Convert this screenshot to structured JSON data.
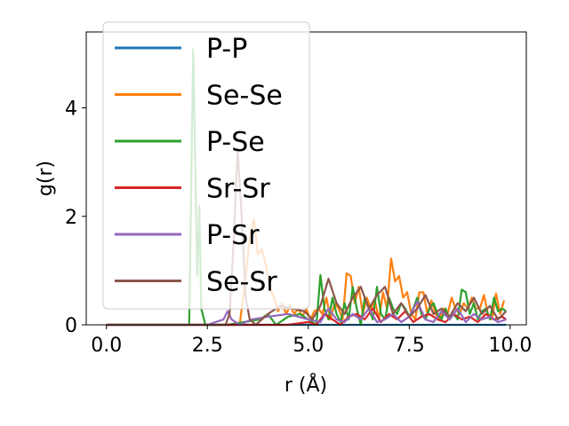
{
  "chart_data": {
    "type": "line",
    "title": "",
    "xlabel": "r (Å)",
    "ylabel": "g(r)",
    "xlim": [
      -0.5,
      10.4
    ],
    "ylim": [
      0,
      5.4
    ],
    "xticks": [
      0.0,
      2.5,
      5.0,
      7.5,
      10.0
    ],
    "xtick_labels": [
      "0.0",
      "2.5",
      "5.0",
      "7.5",
      "10.0"
    ],
    "yticks": [
      0,
      2,
      4
    ],
    "ytick_labels": [
      "0",
      "2",
      "4"
    ],
    "grid": false,
    "legend_position": "upper-left",
    "series": [
      {
        "name": "P-P",
        "color": "#1f77b4",
        "x": [
          0,
          1.0,
          2.0,
          3.0,
          4.0,
          5.0,
          6.0,
          7.0,
          8.0,
          9.0,
          9.9
        ],
        "y": [
          0,
          0,
          0,
          0,
          0,
          0,
          0,
          0,
          0,
          0,
          0
        ]
      },
      {
        "name": "Se-Se",
        "color": "#ff7f0e",
        "x": [
          0,
          3.3,
          3.45,
          3.55,
          3.65,
          3.75,
          3.85,
          3.95,
          4.05,
          4.15,
          4.25,
          4.35,
          4.45,
          4.55,
          4.65,
          4.75,
          4.85,
          4.95,
          5.05,
          5.15,
          5.25,
          5.35,
          5.45,
          5.55,
          5.65,
          5.75,
          5.85,
          5.95,
          6.05,
          6.15,
          6.25,
          6.35,
          6.45,
          6.55,
          6.65,
          6.75,
          6.85,
          6.95,
          7.05,
          7.15,
          7.25,
          7.35,
          7.45,
          7.55,
          7.65,
          7.75,
          7.85,
          7.95,
          8.05,
          8.15,
          8.25,
          8.35,
          8.45,
          8.55,
          8.65,
          8.75,
          8.85,
          8.95,
          9.05,
          9.15,
          9.25,
          9.35,
          9.45,
          9.55,
          9.65,
          9.75,
          9.85
        ],
        "y": [
          0,
          0,
          0.9,
          1.6,
          1.95,
          1.3,
          1.4,
          1.1,
          0.7,
          0.5,
          0.25,
          0.4,
          0.2,
          0.35,
          0.2,
          0.3,
          0.15,
          0.3,
          0.1,
          0.25,
          0.3,
          0.2,
          0.5,
          0.1,
          0.4,
          0.3,
          0.1,
          0.95,
          0.9,
          0.4,
          0.7,
          0.2,
          0.5,
          0.3,
          0.45,
          0.1,
          0.6,
          0.3,
          1.22,
          0.8,
          0.9,
          0.5,
          0.6,
          0.2,
          0.1,
          0.6,
          0.6,
          0.2,
          0.45,
          0.2,
          0.1,
          0.3,
          0.2,
          0.5,
          0.3,
          0.2,
          0.4,
          0.3,
          0.5,
          0.3,
          0.3,
          0.55,
          0.2,
          0.1,
          0.58,
          0.2,
          0.45
        ]
      },
      {
        "name": "P-Se",
        "color": "#2ca02c",
        "x": [
          0,
          2.05,
          2.15,
          2.25,
          2.3,
          2.35,
          2.45,
          3.0,
          3.8,
          4.0,
          4.2,
          4.5,
          4.8,
          5.0,
          5.2,
          5.3,
          5.4,
          5.5,
          5.6,
          5.7,
          5.8,
          5.9,
          6.0,
          6.1,
          6.2,
          6.3,
          6.4,
          6.5,
          6.6,
          6.7,
          6.8,
          6.9,
          7.0,
          7.1,
          7.2,
          7.3,
          7.4,
          7.5,
          7.6,
          7.7,
          7.8,
          7.9,
          8.0,
          8.1,
          8.2,
          8.3,
          8.4,
          8.5,
          8.6,
          8.7,
          8.8,
          8.9,
          9.0,
          9.1,
          9.2,
          9.3,
          9.4,
          9.5,
          9.6,
          9.7,
          9.8,
          9.9
        ],
        "y": [
          0,
          0,
          5.08,
          0.9,
          2.2,
          0.3,
          0,
          0,
          0.1,
          0.2,
          0,
          0.15,
          0.2,
          0.1,
          0,
          0.92,
          0.3,
          0.1,
          0.5,
          0.2,
          0.05,
          0.4,
          0.1,
          0.7,
          0.3,
          0,
          0.5,
          0.3,
          0.1,
          0.7,
          0.2,
          0.1,
          0.5,
          0.3,
          0.2,
          0.4,
          0.3,
          0.15,
          0.3,
          0.5,
          0.2,
          0.1,
          0.3,
          0.4,
          0.2,
          0.1,
          0.3,
          0.1,
          0.2,
          0.1,
          0.65,
          0.6,
          0.2,
          0.4,
          0.1,
          0.25,
          0.3,
          0.1,
          0.5,
          0.25,
          0.3,
          0.25
        ]
      },
      {
        "name": "Sr-Sr",
        "color": "#d62728",
        "x": [
          0,
          3.0,
          4.0,
          4.5,
          5.0,
          5.2,
          5.4,
          5.6,
          5.8,
          6.0,
          6.2,
          6.4,
          6.6,
          6.8,
          7.0,
          7.2,
          7.4,
          7.6,
          7.8,
          8.0,
          8.2,
          8.4,
          8.6,
          8.8,
          9.0,
          9.2,
          9.4,
          9.6,
          9.8,
          9.9
        ],
        "y": [
          0,
          0,
          0,
          0,
          0.05,
          0,
          0.2,
          0.1,
          0,
          0.15,
          0.2,
          0.1,
          0.3,
          0.05,
          0.2,
          0.1,
          0.25,
          0.05,
          0.15,
          0.2,
          0.1,
          0.05,
          0.2,
          0.1,
          0.15,
          0.05,
          0.2,
          0.1,
          0.15,
          0.1
        ]
      },
      {
        "name": "P-Sr",
        "color": "#9467bd",
        "x": [
          0,
          2.5,
          2.9,
          3.0,
          3.1,
          3.3,
          3.6,
          4.0,
          4.5,
          5.0,
          5.3,
          5.5,
          5.7,
          5.9,
          6.1,
          6.3,
          6.5,
          6.7,
          6.9,
          7.1,
          7.3,
          7.5,
          7.7,
          7.9,
          8.1,
          8.3,
          8.5,
          8.7,
          8.9,
          9.1,
          9.3,
          9.5,
          9.7,
          9.9
        ],
        "y": [
          0,
          0,
          0.1,
          0.25,
          0.1,
          0,
          0.1,
          0.15,
          0.2,
          0.1,
          0.05,
          0.3,
          0.1,
          0.05,
          0.2,
          0.1,
          0.3,
          0.05,
          0.1,
          0.2,
          0.05,
          0.15,
          0.43,
          0.1,
          0.05,
          0.25,
          0.1,
          0.3,
          0.05,
          0.2,
          0.1,
          0.15,
          0.05,
          0.1
        ]
      },
      {
        "name": "Se-Sr",
        "color": "#8c564b",
        "x": [
          0,
          2.95,
          3.05,
          3.15,
          3.25,
          3.35,
          3.45,
          3.55,
          3.7,
          4.0,
          4.3,
          4.6,
          4.9,
          5.1,
          5.3,
          5.5,
          5.7,
          5.9,
          6.1,
          6.3,
          6.5,
          6.7,
          6.9,
          7.1,
          7.3,
          7.5,
          7.7,
          7.9,
          8.1,
          8.3,
          8.5,
          8.7,
          8.9,
          9.1,
          9.3,
          9.5,
          9.7,
          9.9
        ],
        "y": [
          0,
          0,
          0.2,
          1.5,
          3.25,
          2.0,
          0.5,
          0.1,
          0,
          0.2,
          0.35,
          0.3,
          0.25,
          0.1,
          0.35,
          0.85,
          0.4,
          0.2,
          0.5,
          0.7,
          0.3,
          0.55,
          0.7,
          0.2,
          0.4,
          0.15,
          0.3,
          0.55,
          0.2,
          0.3,
          0.15,
          0.4,
          0.25,
          0.5,
          0.2,
          0.35,
          0.1,
          0.25
        ]
      }
    ]
  }
}
